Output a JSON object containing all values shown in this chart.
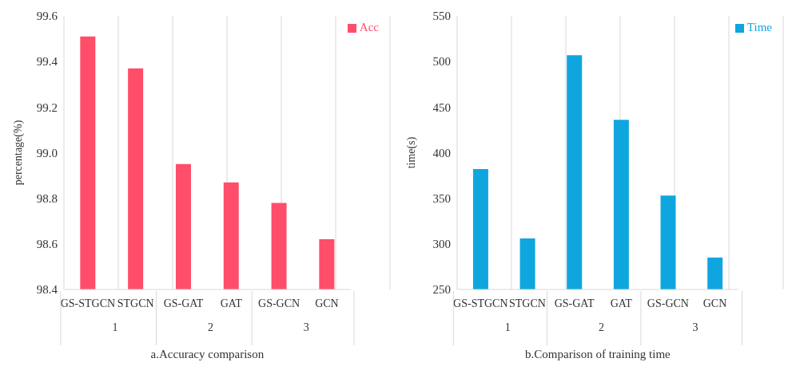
{
  "chart_data": [
    {
      "type": "bar",
      "xlabel": "a.Accuracy comparison",
      "ylabel": "percentage(%)",
      "categories": [
        "GS-STGCN",
        "STGCN",
        "GS-GAT",
        "GAT",
        "GS-GCN",
        "GCN"
      ],
      "series": [
        {
          "name": "Acc",
          "color": "#ff4d6a",
          "values": [
            99.51,
            99.37,
            98.95,
            98.87,
            98.78,
            98.62
          ]
        }
      ],
      "ylim": [
        98.4,
        99.6
      ],
      "yticks": [
        {
          "value": 98.4,
          "label": "98.4"
        },
        {
          "value": 98.6,
          "label": "98.6"
        },
        {
          "value": 98.8,
          "label": "98.8"
        },
        {
          "value": 99.0,
          "label": "99.0"
        },
        {
          "value": 99.2,
          "label": "99.2"
        },
        {
          "value": 99.4,
          "label": "99.4"
        },
        {
          "value": 99.6,
          "label": "99.6"
        }
      ],
      "annotations": [
        "1",
        "2",
        "3"
      ],
      "grid": "x",
      "legend": "top right"
    },
    {
      "type": "bar",
      "xlabel": "b.Comparison of training time",
      "ylabel": "time(s)",
      "categories": [
        "GS-STGCN",
        "STGCN",
        "GS-GAT",
        "GAT",
        "GS-GCN",
        "GCN"
      ],
      "series": [
        {
          "name": "Time",
          "color": "#0fa6e0",
          "values": [
            382,
            306,
            507,
            436,
            353,
            285
          ]
        }
      ],
      "ylim": [
        250,
        550
      ],
      "yticks": [
        250,
        300,
        350,
        400,
        450,
        500,
        550
      ],
      "annotations": [
        "1",
        "2",
        "3"
      ],
      "grid": "x",
      "legend": "top right"
    }
  ]
}
